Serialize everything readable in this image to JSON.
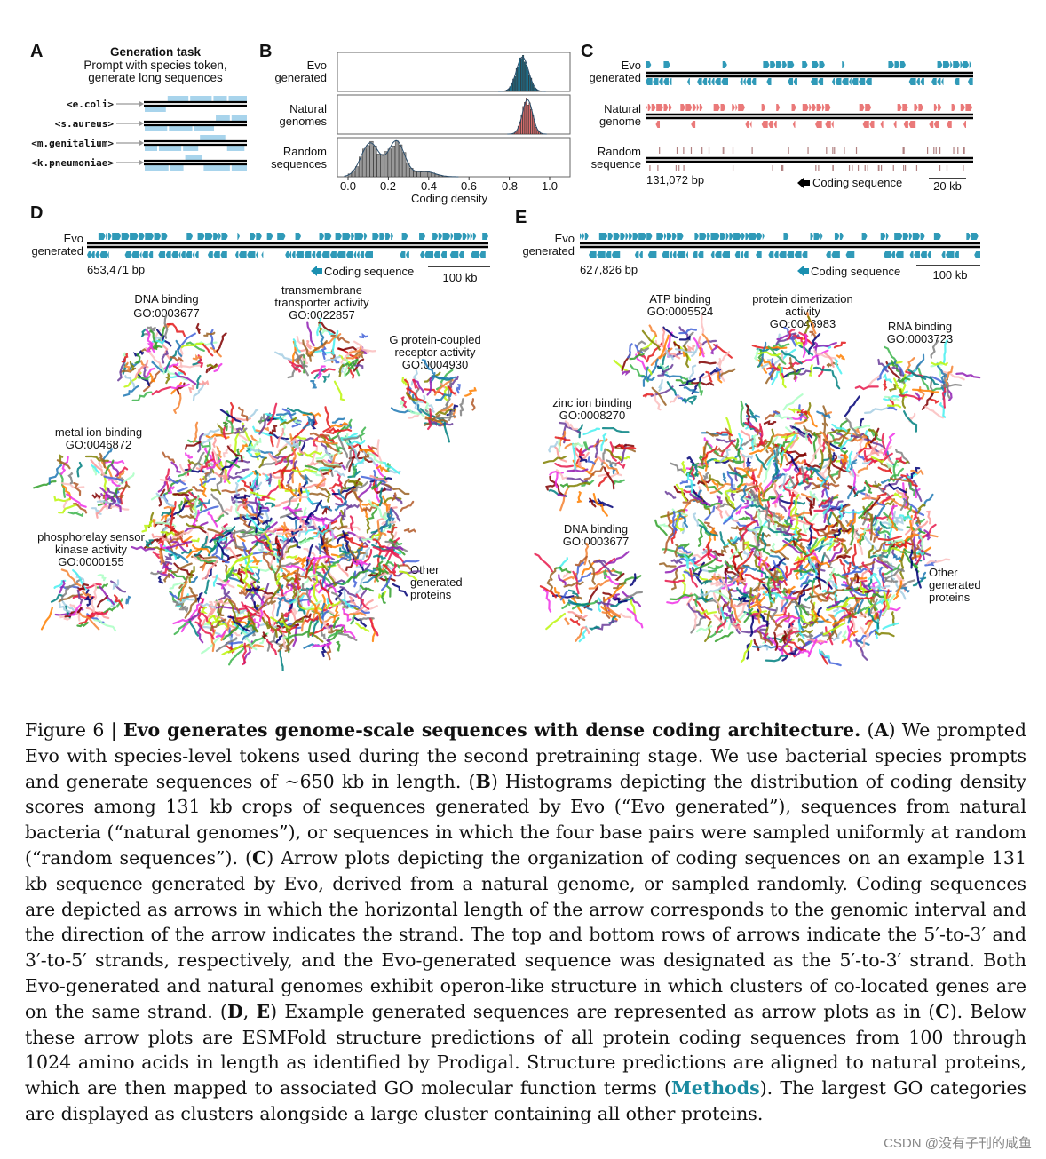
{
  "panelA": {
    "letter": "A",
    "title": "Generation task",
    "subtitle_line1": "Prompt with species token,",
    "subtitle_line2": "generate long sequences",
    "tokens": [
      "<e.coli>",
      "<s.aureus>",
      "<m.genitalium>",
      "<k.pneumoniae>"
    ]
  },
  "panelB": {
    "letter": "B",
    "rows": [
      {
        "line1": "Evo",
        "line2": "generated",
        "color": "#1f6f8b"
      },
      {
        "line1": "Natural",
        "line2": "genomes",
        "color": "#e07070"
      },
      {
        "line1": "Random",
        "line2": "sequences",
        "color": "#999999"
      }
    ],
    "ticks": [
      "0.0",
      "0.2",
      "0.4",
      "0.6",
      "0.8",
      "1.0"
    ],
    "xlabel": "Coding density"
  },
  "panelC": {
    "letter": "C",
    "rows": [
      {
        "line1": "Evo",
        "line2": "generated",
        "color": "#1a8fb0"
      },
      {
        "line1": "Natural",
        "line2": "genome",
        "color": "#e86a6a"
      },
      {
        "line1": "Random",
        "line2": "sequence",
        "color": "#b08080"
      }
    ],
    "length": "131,072 bp",
    "legend": "Coding sequence",
    "scale": "20 kb"
  },
  "panelD": {
    "letter": "D",
    "row_line1": "Evo",
    "row_line2": "generated",
    "length": "653,471 bp",
    "legend": "Coding sequence",
    "scale": "100 kb",
    "clusters": [
      {
        "l1": "DNA binding",
        "l2": "GO:0003677",
        "l3": ""
      },
      {
        "l1": "transmembrane",
        "l2": "transporter activity",
        "l3": "GO:0022857"
      },
      {
        "l1": "G protein-coupled",
        "l2": "receptor activity",
        "l3": "GO:0004930"
      },
      {
        "l1": "metal ion binding",
        "l2": "GO:0046872",
        "l3": ""
      },
      {
        "l1": "phosphorelay sensor",
        "l2": "kinase activity",
        "l3": "GO:0000155"
      },
      {
        "l1": "Other",
        "l2": "generated",
        "l3": "proteins"
      }
    ]
  },
  "panelE": {
    "letter": "E",
    "row_line1": "Evo",
    "row_line2": "generated",
    "length": "627,826 bp",
    "legend": "Coding sequence",
    "scale": "100 kb",
    "clusters": [
      {
        "l1": "ATP binding",
        "l2": "GO:0005524",
        "l3": ""
      },
      {
        "l1": "protein dimerization",
        "l2": "activity",
        "l3": "GO:0046983"
      },
      {
        "l1": "RNA binding",
        "l2": "GO:0003723",
        "l3": ""
      },
      {
        "l1": "zinc ion binding",
        "l2": "GO:0008270",
        "l3": ""
      },
      {
        "l1": "DNA binding",
        "l2": "GO:0003677",
        "l3": ""
      },
      {
        "l1": "Other",
        "l2": "generated",
        "l3": "proteins"
      }
    ]
  },
  "caption": {
    "fig": "Figure 6 | ",
    "title": "Evo generates genome-scale sequences with dense coding architecture.",
    "t1": " (",
    "A": "A",
    "t2": ") We prompted Evo with species-level tokens used during the second pretraining stage. We use bacterial species prompts and generate sequences of ~650 kb in length. (",
    "B": "B",
    "t3": ") Histograms depicting the distribution of coding density scores among 131 kb crops of sequences generated by Evo (“Evo generated”), sequences from natural bacteria (“natural genomes”), or sequences in which the four base pairs were sampled uniformly at random (“random sequences”). (",
    "C": "C",
    "t4": ") Arrow plots depicting the organization of coding sequences on an example 131 kb sequence generated by Evo, derived from a natural genome, or sampled randomly. Coding sequences are depicted as arrows in which the horizontal length of the arrow corresponds to the genomic interval and the direction of the arrow indicates the strand. The top and bottom rows of arrows indicate the 5′-to-3′ and 3′-to-5′ strands, respectively, and the Evo-generated sequence was designated as the 5′-to-3′ strand. Both Evo-generated and natural genomes exhibit operon-like structure in which clusters of co-located genes are on the same strand. (",
    "D": "D",
    "t5": ", ",
    "E": "E",
    "t6": ") Example generated sequences are represented as arrow plots as in (",
    "C2": "C",
    "t7": "). Below these arrow plots are ESMFold structure predictions of all protein coding sequences from 100 through 1024 amino acids in length as identified by Prodigal. Structure predictions are aligned to natural proteins, which are then mapped to associated GO molecular function terms (",
    "methods": "Methods",
    "t8": "). The largest GO categories are displayed as clusters alongside a large cluster containing all other proteins."
  },
  "watermark": "CSDN @没有子刊的咸鱼"
}
